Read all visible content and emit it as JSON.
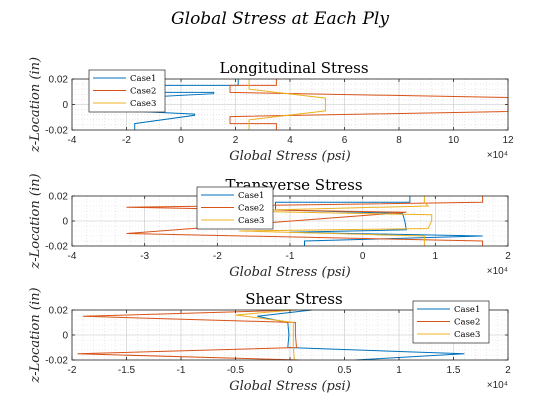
{
  "figure": {
    "suptitle": "Global Stress at Each Ply"
  },
  "chart_data": [
    {
      "type": "line",
      "title": "Longitudinal Stress",
      "xlabel": "Global Stress (psi)",
      "ylabel": "z-Location (in)",
      "x_exponent": "×10⁴",
      "xlim": [
        -40000,
        120000
      ],
      "ylim": [
        -0.02,
        0.02
      ],
      "xticks": [
        -40000,
        -20000,
        0,
        20000,
        40000,
        60000,
        80000,
        100000,
        120000
      ],
      "xtick_labels": [
        "-4",
        "-2",
        "0",
        "2",
        "4",
        "6",
        "8",
        "10",
        "12"
      ],
      "yticks": [
        -0.02,
        0,
        0.02
      ],
      "ytick_labels": [
        "-0.02",
        "0",
        "0.02"
      ],
      "grid": true,
      "legend_position": "top-left",
      "series": [
        {
          "name": "Case1",
          "color": "#0072BD",
          "points": [
            [
              21000,
              0.02
            ],
            [
              21000,
              0.015
            ],
            [
              -14000,
              0.015
            ],
            [
              -14000,
              0.0095
            ],
            [
              12000,
              0.0095
            ],
            [
              12000,
              0.0085
            ],
            [
              -20000,
              0.005
            ],
            [
              -20000,
              0.0
            ],
            [
              -20000,
              -0.005
            ],
            [
              5000,
              -0.0075
            ],
            [
              5000,
              -0.0085
            ],
            [
              -17000,
              -0.015
            ],
            [
              -17000,
              -0.02
            ]
          ]
        },
        {
          "name": "Case2",
          "color": "#D95319",
          "points": [
            [
              35000,
              0.02
            ],
            [
              35000,
              0.015
            ],
            [
              18000,
              0.015
            ],
            [
              18000,
              0.0095
            ],
            [
              120000,
              0.0055
            ],
            [
              120000,
              0.0
            ],
            [
              120000,
              -0.0055
            ],
            [
              18000,
              -0.0095
            ],
            [
              18000,
              -0.015
            ],
            [
              35000,
              -0.015
            ],
            [
              35000,
              -0.02
            ]
          ]
        },
        {
          "name": "Case3",
          "color": "#EDB120",
          "points": [
            [
              25000,
              0.02
            ],
            [
              25000,
              0.015
            ],
            [
              25000,
              0.012
            ],
            [
              53000,
              0.005
            ],
            [
              53000,
              0.0
            ],
            [
              53000,
              -0.005
            ],
            [
              25000,
              -0.012
            ],
            [
              25000,
              -0.02
            ]
          ]
        }
      ]
    },
    {
      "type": "line",
      "title": "Transverse Stress",
      "xlabel": "Global Stress (psi)",
      "ylabel": "z-Location (in)",
      "x_exponent": "×10⁴",
      "xlim": [
        -40000,
        20000
      ],
      "ylim": [
        -0.02,
        0.02
      ],
      "xticks": [
        -40000,
        -30000,
        -20000,
        -10000,
        0,
        10000,
        20000
      ],
      "xtick_labels": [
        "-4",
        "-3",
        "-2",
        "-1",
        "0",
        "1",
        "2"
      ],
      "yticks": [
        -0.02,
        0,
        0.02
      ],
      "ytick_labels": [
        "-0.02",
        "0",
        "0.02"
      ],
      "grid": true,
      "legend_position": "top-left",
      "series": [
        {
          "name": "Case1",
          "color": "#0072BD",
          "points": [
            [
              6500,
              0.02
            ],
            [
              6500,
              0.015
            ],
            [
              -12000,
              0.015
            ],
            [
              -12000,
              0.009
            ],
            [
              5500,
              0.006
            ],
            [
              5800,
              0.0
            ],
            [
              6000,
              -0.007
            ],
            [
              -10000,
              -0.009
            ],
            [
              16500,
              -0.012
            ],
            [
              -8000,
              -0.016
            ],
            [
              -8000,
              -0.02
            ]
          ]
        },
        {
          "name": "Case2",
          "color": "#D95319",
          "points": [
            [
              16500,
              0.02
            ],
            [
              16500,
              0.015
            ],
            [
              -32500,
              0.011
            ],
            [
              6000,
              0.007
            ],
            [
              -32500,
              -0.01
            ],
            [
              16500,
              -0.016
            ],
            [
              16500,
              -0.02
            ]
          ]
        },
        {
          "name": "Case3",
          "color": "#EDB120",
          "points": [
            [
              8500,
              0.02
            ],
            [
              8500,
              0.015
            ],
            [
              9000,
              0.012
            ],
            [
              -18000,
              0.008
            ],
            [
              9500,
              0.005
            ],
            [
              9500,
              0.0
            ],
            [
              9000,
              -0.006
            ],
            [
              -17000,
              -0.008
            ],
            [
              8500,
              -0.012
            ],
            [
              8500,
              -0.02
            ]
          ]
        }
      ]
    },
    {
      "type": "line",
      "title": "Shear Stress",
      "xlabel": "Global Stress (psi)",
      "ylabel": "z-Location (in)",
      "x_exponent": "×10⁴",
      "xlim": [
        -20000,
        20000
      ],
      "ylim": [
        -0.02,
        0.02
      ],
      "xticks": [
        -20000,
        -15000,
        -10000,
        -5000,
        0,
        5000,
        10000,
        15000,
        20000
      ],
      "xtick_labels": [
        "-2",
        "-1.5",
        "-1",
        "-0.5",
        "0",
        "0.5",
        "1",
        "1.5",
        "2"
      ],
      "yticks": [
        -0.02,
        0,
        0.02
      ],
      "ytick_labels": [
        "-0.02",
        "0",
        "0.02"
      ],
      "grid": true,
      "legend_position": "top-right",
      "series": [
        {
          "name": "Case1",
          "color": "#0072BD",
          "points": [
            [
              2000,
              0.02
            ],
            [
              -3000,
              0.015
            ],
            [
              -200,
              0.01
            ],
            [
              -100,
              0.0
            ],
            [
              -200,
              -0.01
            ],
            [
              16000,
              -0.015
            ],
            [
              6000,
              -0.02
            ]
          ]
        },
        {
          "name": "Case2",
          "color": "#D95319",
          "points": [
            [
              600,
              0.02
            ],
            [
              -19000,
              0.015
            ],
            [
              500,
              0.01
            ],
            [
              500,
              0.0
            ],
            [
              600,
              -0.01
            ],
            [
              -19500,
              -0.015
            ],
            [
              800,
              -0.02
            ]
          ]
        },
        {
          "name": "Case3",
          "color": "#EDB120",
          "points": [
            [
              400,
              0.02
            ],
            [
              -5000,
              0.016
            ],
            [
              300,
              0.01
            ],
            [
              300,
              0.0
            ],
            [
              300,
              -0.01
            ],
            [
              400,
              -0.02
            ]
          ]
        }
      ]
    }
  ]
}
